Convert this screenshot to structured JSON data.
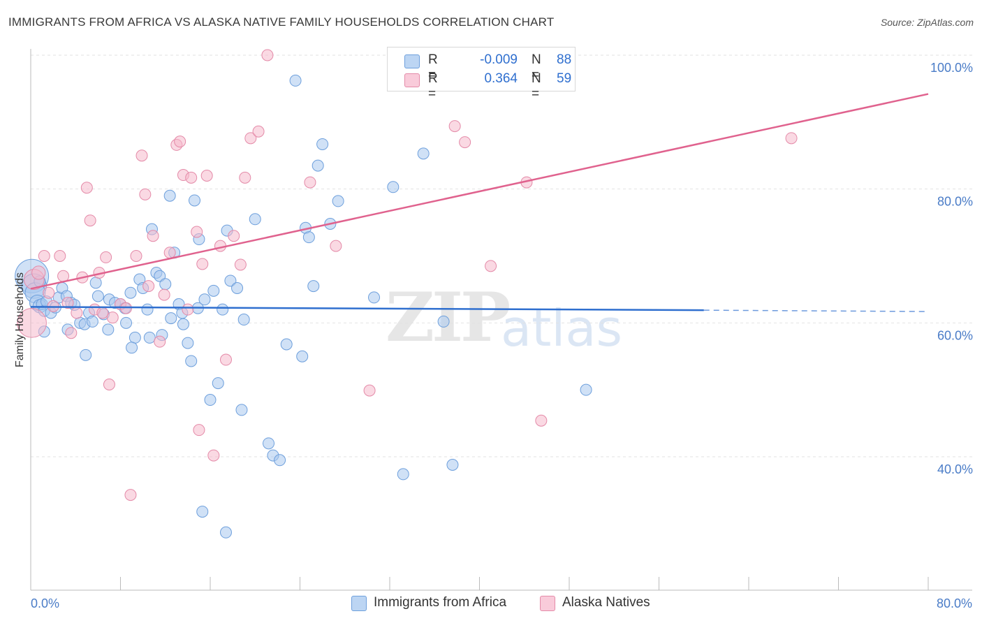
{
  "title": "IMMIGRANTS FROM AFRICA VS ALASKA NATIVE FAMILY HOUSEHOLDS CORRELATION CHART",
  "source": "Source: ZipAtlas.com",
  "watermark": {
    "zip": "ZIP",
    "atlas": "atlas"
  },
  "legend": {
    "series1": {
      "r_label": "R =",
      "r_value": "-0.009",
      "n_label": "N =",
      "n_value": "88"
    },
    "series2": {
      "r_label": "R =",
      "r_value": "0.364",
      "n_label": "N =",
      "n_value": "59"
    }
  },
  "colors": {
    "blue_fill": "#a9c8ef",
    "blue_stroke": "#6d9fdc",
    "blue_line": "#2f6fcf",
    "pink_fill": "#f6b9cc",
    "pink_stroke": "#e48aa8",
    "pink_line": "#e0628e",
    "grid": "#e2e2e2",
    "axis": "#bbbbbb"
  },
  "chart_data": {
    "type": "scatter",
    "title": "IMMIGRANTS FROM AFRICA VS ALASKA NATIVE FAMILY HOUSEHOLDS CORRELATION CHART",
    "xlabel": "",
    "ylabel": "Family Households",
    "xlim": [
      0,
      80
    ],
    "ylim": [
      20,
      104
    ],
    "x_tick_labels": [
      "0.0%",
      "80.0%"
    ],
    "y_ticks": [
      40,
      60,
      80,
      100
    ],
    "y_tick_labels": [
      "40.0%",
      "60.0%",
      "80.0%",
      "100.0%"
    ],
    "grid": true,
    "series": [
      {
        "name": "Immigrants from Africa",
        "color": "#a9c8ef",
        "r": -0.009,
        "n": 88,
        "trend": {
          "x": [
            0,
            60,
            80
          ],
          "y": [
            62.4,
            61.9,
            61.7
          ],
          "dashed_from_x": 60
        },
        "points": [
          [
            0.1,
            67,
            30
          ],
          [
            0.3,
            65.5,
            22
          ],
          [
            0.4,
            64.5,
            18
          ],
          [
            0.6,
            63,
            14
          ],
          [
            0.8,
            62.5,
            12
          ],
          [
            1.0,
            62.8,
            10
          ],
          [
            1.2,
            61.8,
            10
          ],
          [
            1.4,
            63.2,
            10
          ],
          [
            1.8,
            61.5,
            10
          ],
          [
            2.2,
            62.3,
            10
          ],
          [
            2.5,
            63.8,
            10
          ],
          [
            2.8,
            65.2,
            10
          ],
          [
            3.2,
            64,
            10
          ],
          [
            3.6,
            63,
            10
          ],
          [
            3.9,
            62.7,
            10
          ],
          [
            4.4,
            60,
            10
          ],
          [
            4.8,
            59.8,
            10
          ],
          [
            5.2,
            61.5,
            10
          ],
          [
            5.5,
            60.2,
            10
          ],
          [
            5.8,
            66,
            10
          ],
          [
            6.0,
            64,
            10
          ],
          [
            6.5,
            61.3,
            10
          ],
          [
            7.0,
            63.5,
            10
          ],
          [
            7.5,
            63,
            10
          ],
          [
            8.0,
            62.8,
            10
          ],
          [
            8.4,
            62.2,
            10
          ],
          [
            8.9,
            64.5,
            10
          ],
          [
            9.3,
            57.8,
            10
          ],
          [
            9.7,
            66.5,
            10
          ],
          [
            10.0,
            65.2,
            10
          ],
          [
            10.4,
            62,
            10
          ],
          [
            10.8,
            74,
            10
          ],
          [
            11.2,
            67.5,
            10
          ],
          [
            11.5,
            67,
            10
          ],
          [
            12.0,
            65.8,
            10
          ],
          [
            12.4,
            79,
            10
          ],
          [
            12.8,
            70.5,
            10
          ],
          [
            13.2,
            62.8,
            10
          ],
          [
            13.5,
            61.5,
            10
          ],
          [
            14.0,
            57,
            10
          ],
          [
            14.3,
            54.3,
            10
          ],
          [
            14.6,
            78.3,
            10
          ],
          [
            15.0,
            72.5,
            10
          ],
          [
            15.5,
            63.5,
            10
          ],
          [
            16.0,
            48.5,
            10
          ],
          [
            16.3,
            64.8,
            10
          ],
          [
            16.7,
            51,
            10
          ],
          [
            17.1,
            62,
            10
          ],
          [
            17.5,
            73.8,
            10
          ],
          [
            17.8,
            66.3,
            10
          ],
          [
            18.4,
            65.2,
            10
          ],
          [
            19.0,
            60.5,
            10
          ],
          [
            20.0,
            75.5,
            10
          ],
          [
            21.2,
            42,
            10
          ],
          [
            21.6,
            40.2,
            10
          ],
          [
            22.2,
            39.5,
            10
          ],
          [
            22.8,
            56.8,
            10
          ],
          [
            23.6,
            96.2,
            10
          ],
          [
            24.2,
            55,
            10
          ],
          [
            24.5,
            74.2,
            10
          ],
          [
            24.8,
            72.8,
            10
          ],
          [
            25.2,
            65.5,
            10
          ],
          [
            25.6,
            83.5,
            10
          ],
          [
            26.0,
            86.7,
            10
          ],
          [
            26.7,
            74.8,
            10
          ],
          [
            27.4,
            78.2,
            10
          ],
          [
            30.6,
            63.8,
            10
          ],
          [
            32.3,
            80.3,
            10
          ],
          [
            33.2,
            37.4,
            10
          ],
          [
            35.0,
            85.3,
            10
          ],
          [
            36.8,
            60.2,
            10
          ],
          [
            37.6,
            38.8,
            10
          ],
          [
            49.5,
            50,
            10
          ],
          [
            9.0,
            56.3,
            10
          ],
          [
            11.7,
            58.2,
            10
          ],
          [
            13.6,
            59.8,
            10
          ],
          [
            15.3,
            31.8,
            10
          ],
          [
            17.4,
            28.7,
            10
          ],
          [
            18.8,
            47,
            10
          ],
          [
            0.8,
            66.2,
            10
          ],
          [
            1.2,
            58.7,
            10
          ],
          [
            3.3,
            59,
            10
          ],
          [
            4.9,
            55.2,
            10
          ],
          [
            6.9,
            59,
            10
          ],
          [
            8.5,
            60,
            10
          ],
          [
            10.6,
            57.8,
            10
          ],
          [
            12.5,
            60.7,
            10
          ],
          [
            14.9,
            62.2,
            10
          ]
        ]
      },
      {
        "name": "Alaska Natives",
        "color": "#f6b9cc",
        "r": 0.364,
        "n": 59,
        "trend": {
          "x": [
            0,
            80
          ],
          "y": [
            65.1,
            94.2
          ]
        },
        "points": [
          [
            0.1,
            60,
            26
          ],
          [
            0.3,
            66.5,
            18
          ],
          [
            0.7,
            67.5,
            12
          ],
          [
            1.2,
            70,
            10
          ],
          [
            1.6,
            64.5,
            10
          ],
          [
            2.0,
            62.5,
            10
          ],
          [
            2.6,
            70,
            10
          ],
          [
            2.9,
            67,
            10
          ],
          [
            3.3,
            63,
            10
          ],
          [
            3.6,
            58.5,
            10
          ],
          [
            4.1,
            61.5,
            10
          ],
          [
            4.6,
            66.8,
            10
          ],
          [
            5.0,
            80.2,
            10
          ],
          [
            5.3,
            75.3,
            10
          ],
          [
            5.7,
            62,
            10
          ],
          [
            6.1,
            67.5,
            10
          ],
          [
            6.4,
            61.5,
            10
          ],
          [
            6.7,
            69.8,
            10
          ],
          [
            7.0,
            50.8,
            10
          ],
          [
            7.3,
            60.8,
            10
          ],
          [
            8.0,
            62.8,
            10
          ],
          [
            8.5,
            62.2,
            10
          ],
          [
            8.9,
            34.3,
            10
          ],
          [
            9.4,
            70,
            10
          ],
          [
            9.9,
            85,
            10
          ],
          [
            10.2,
            79.2,
            10
          ],
          [
            10.5,
            65.5,
            10
          ],
          [
            10.9,
            73,
            10
          ],
          [
            11.5,
            57.2,
            10
          ],
          [
            11.9,
            64.2,
            10
          ],
          [
            12.4,
            70.5,
            10
          ],
          [
            13.0,
            86.6,
            10
          ],
          [
            13.3,
            87.1,
            10
          ],
          [
            13.6,
            82.1,
            10
          ],
          [
            14.0,
            62,
            10
          ],
          [
            14.3,
            81.7,
            10
          ],
          [
            14.8,
            73.6,
            10
          ],
          [
            15.0,
            44,
            10
          ],
          [
            15.3,
            68.8,
            10
          ],
          [
            15.7,
            82,
            10
          ],
          [
            16.3,
            40.2,
            10
          ],
          [
            16.9,
            71.5,
            10
          ],
          [
            17.4,
            54.5,
            10
          ],
          [
            18.1,
            73,
            10
          ],
          [
            18.7,
            68.7,
            10
          ],
          [
            19.1,
            81.7,
            10
          ],
          [
            19.6,
            87.6,
            10
          ],
          [
            20.3,
            88.6,
            10
          ],
          [
            21.1,
            100,
            10
          ],
          [
            24.9,
            81,
            10
          ],
          [
            27.2,
            71.5,
            10
          ],
          [
            30.2,
            49.9,
            10
          ],
          [
            32.7,
            96.4,
            10
          ],
          [
            37.8,
            89.4,
            10
          ],
          [
            38.7,
            87,
            10
          ],
          [
            41.0,
            68.5,
            10
          ],
          [
            44.2,
            81,
            10
          ],
          [
            45.5,
            45.4,
            10
          ],
          [
            67.8,
            87.6,
            10
          ]
        ]
      }
    ]
  }
}
